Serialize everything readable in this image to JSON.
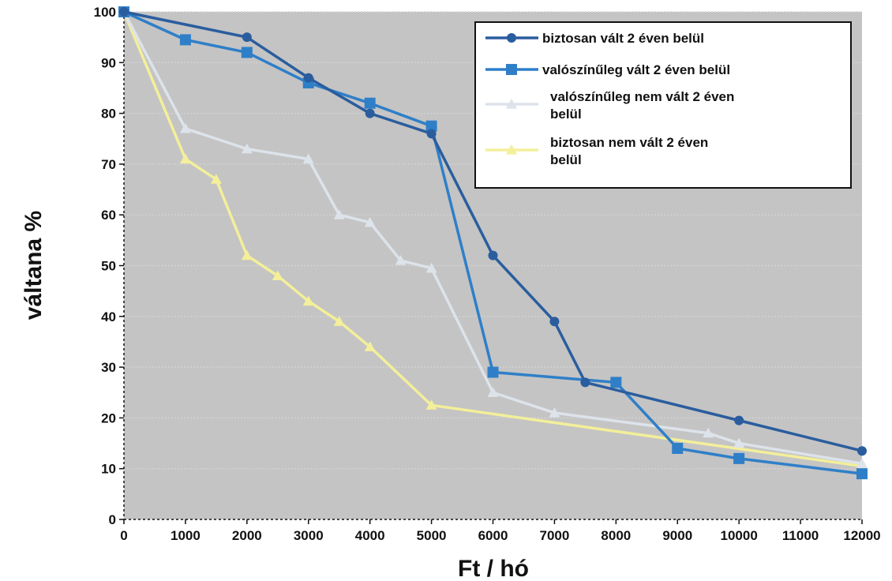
{
  "chart_data": {
    "type": "line",
    "title": "",
    "xlabel": "Ft / hó",
    "ylabel": "váltana %",
    "xlim": [
      0,
      12000
    ],
    "ylim": [
      0,
      100
    ],
    "x_ticks": [
      0,
      1000,
      2000,
      3000,
      4000,
      5000,
      6000,
      7000,
      8000,
      9000,
      10000,
      11000,
      12000
    ],
    "y_ticks": [
      0,
      10,
      20,
      30,
      40,
      50,
      60,
      70,
      80,
      90,
      100
    ],
    "grid": true,
    "legend_position": "top-right",
    "series": [
      {
        "name_lines": [
          "biztosan vált 2 éven belül"
        ],
        "color": "#2a5d9e",
        "marker": "circle",
        "points": [
          [
            0,
            100
          ],
          [
            2000,
            95
          ],
          [
            3000,
            87
          ],
          [
            4000,
            80
          ],
          [
            5000,
            76
          ],
          [
            6000,
            52
          ],
          [
            7000,
            39
          ],
          [
            7500,
            27
          ],
          [
            10000,
            19.5
          ],
          [
            12000,
            13.5
          ]
        ]
      },
      {
        "name_lines": [
          "valószínűleg vált 2 éven belül"
        ],
        "color": "#2f7fc8",
        "marker": "square",
        "points": [
          [
            0,
            100
          ],
          [
            1000,
            94.5
          ],
          [
            2000,
            92
          ],
          [
            3000,
            86
          ],
          [
            4000,
            82
          ],
          [
            5000,
            77.5
          ],
          [
            6000,
            29
          ],
          [
            8000,
            27
          ],
          [
            9000,
            14
          ],
          [
            10000,
            12
          ],
          [
            12000,
            9
          ]
        ]
      },
      {
        "name_lines": [
          "valószínűleg nem vált 2 éven",
          "belül"
        ],
        "color": "#dde3ea",
        "marker": "triangle",
        "points": [
          [
            0,
            100
          ],
          [
            1000,
            77
          ],
          [
            2000,
            73
          ],
          [
            3000,
            71
          ],
          [
            3500,
            60
          ],
          [
            4000,
            58.5
          ],
          [
            4500,
            51
          ],
          [
            5000,
            49.5
          ],
          [
            6000,
            25
          ],
          [
            7000,
            21
          ],
          [
            9500,
            17
          ],
          [
            10000,
            15
          ],
          [
            12000,
            11
          ]
        ]
      },
      {
        "name_lines": [
          "biztosan nem vált 2 éven",
          "belül"
        ],
        "color": "#f3ef9a",
        "marker": "triangle",
        "points": [
          [
            0,
            100
          ],
          [
            1000,
            71
          ],
          [
            1500,
            67
          ],
          [
            2000,
            52
          ],
          [
            2500,
            48
          ],
          [
            3000,
            43
          ],
          [
            3500,
            39
          ],
          [
            4000,
            34
          ],
          [
            5000,
            22.5
          ],
          [
            12000,
            10.5
          ]
        ]
      }
    ],
    "colors": {
      "plot_background": "#c4c4c4",
      "gridline": "#d2d2d2",
      "legend_background": "#ffffff",
      "legend_border": "#111111"
    }
  }
}
